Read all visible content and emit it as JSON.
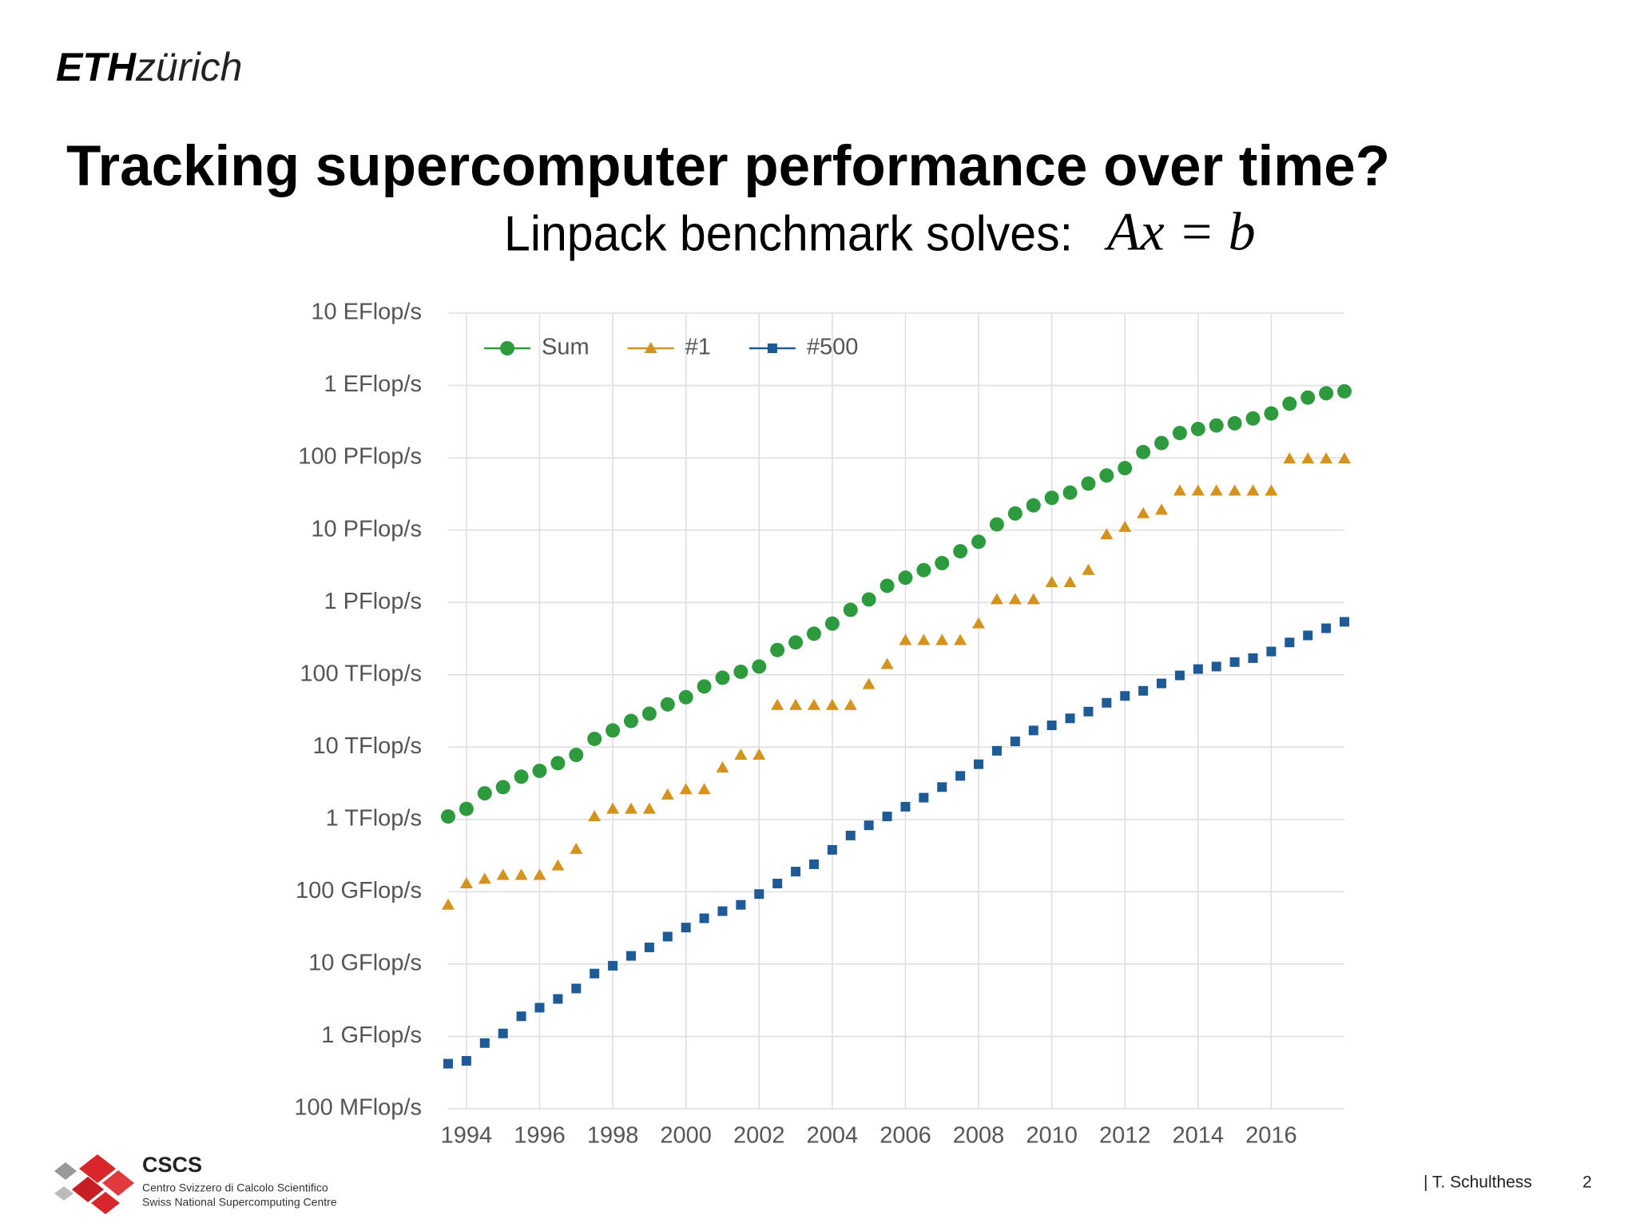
{
  "slide": {
    "logo": {
      "bold": "ETH",
      "light": "zürich"
    },
    "title": "Tracking supercomputer performance over time?",
    "subtitle": "Linpack benchmark solves:",
    "equation": "Ax = b",
    "footer": {
      "author": "| T. Schulthess",
      "page": "2"
    },
    "org": {
      "name": "CSCS",
      "line1": "Centro Svizzero di Calcolo Scientifico",
      "line2": "Swiss National Supercomputing Centre"
    }
  },
  "chart_data": {
    "type": "scatter",
    "log_y": true,
    "grid": true,
    "legend": "upper left",
    "x": [
      1993.5,
      1994,
      1994.5,
      1995,
      1995.5,
      1996,
      1996.5,
      1997,
      1997.5,
      1998,
      1998.5,
      1999,
      1999.5,
      2000,
      2000.5,
      2001,
      2001.5,
      2002,
      2002.5,
      2003,
      2003.5,
      2004,
      2004.5,
      2005,
      2005.5,
      2006,
      2006.5,
      2007,
      2007.5,
      2008,
      2008.5,
      2009,
      2009.5,
      2010,
      2010.5,
      2011,
      2011.5,
      2012,
      2012.5,
      2013,
      2013.5,
      2014,
      2014.5,
      2015,
      2015.5,
      2016,
      2016.5,
      2017,
      2017.5,
      2018
    ],
    "xlim": [
      1993.5,
      2018
    ],
    "xticks": [
      1994,
      1996,
      1998,
      2000,
      2002,
      2004,
      2006,
      2008,
      2010,
      2012,
      2014,
      2016
    ],
    "ylim": [
      100000000.0,
      1e+19
    ],
    "yticks": [
      {
        "value": 100000000.0,
        "label": "100 MFlop/s"
      },
      {
        "value": 1000000000.0,
        "label": "1 GFlop/s"
      },
      {
        "value": 10000000000.0,
        "label": "10 GFlop/s"
      },
      {
        "value": 100000000000.0,
        "label": "100 GFlop/s"
      },
      {
        "value": 1000000000000.0,
        "label": "1 TFlop/s"
      },
      {
        "value": 10000000000000.0,
        "label": "10 TFlop/s"
      },
      {
        "value": 100000000000000.0,
        "label": "100 TFlop/s"
      },
      {
        "value": 1000000000000000.0,
        "label": "1 PFlop/s"
      },
      {
        "value": 1e+16,
        "label": "10 PFlop/s"
      },
      {
        "value": 1e+17,
        "label": "100 PFlop/s"
      },
      {
        "value": 1e+18,
        "label": "1 EFlop/s"
      },
      {
        "value": 1e+19,
        "label": "10 EFlop/s"
      }
    ],
    "series": [
      {
        "name": "Sum",
        "color": "#2e9a3e",
        "marker": "circle",
        "values": [
          1100000000000.0,
          1400000000000.0,
          2300000000000.0,
          2800000000000.0,
          3900000000000.0,
          4700000000000.0,
          6000000000000.0,
          7800000000000.0,
          13000000000000.0,
          17000000000000.0,
          23000000000000.0,
          29000000000000.0,
          39000000000000.0,
          49000000000000.0,
          69000000000000.0,
          91000000000000.0,
          110000000000000.0,
          130000000000000.0,
          220000000000000.0,
          280000000000000.0,
          370000000000000.0,
          510000000000000.0,
          790000000000000.0,
          1100000000000000.0,
          1700000000000000.0,
          2200000000000000.0,
          2800000000000000.0,
          3500000000000000.0,
          5100000000000000.0,
          6900000000000000.0,
          1.2e+16,
          1.7e+16,
          2.2e+16,
          2.8e+16,
          3.3e+16,
          4.4e+16,
          5.7e+16,
          7.2e+16,
          1.2e+17,
          1.6e+17,
          2.2e+17,
          2.5e+17,
          2.8e+17,
          3e+17,
          3.5e+17,
          4.1e+17,
          5.6e+17,
          6.8e+17,
          7.8e+17,
          8.3e+17
        ]
      },
      {
        "name": "#1",
        "color": "#d4921e",
        "marker": "triangle",
        "values": [
          66000000000.0,
          130000000000.0,
          150000000000.0,
          170000000000.0,
          170000000000.0,
          170000000000.0,
          230000000000.0,
          390000000000.0,
          1100000000000.0,
          1400000000000.0,
          1400000000000.0,
          1400000000000.0,
          2200000000000.0,
          2600000000000.0,
          2600000000000.0,
          5200000000000.0,
          7800000000000.0,
          7800000000000.0,
          38000000000000.0,
          38000000000000.0,
          38000000000000.0,
          38000000000000.0,
          38000000000000.0,
          74000000000000.0,
          140000000000000.0,
          300000000000000.0,
          300000000000000.0,
          300000000000000.0,
          300000000000000.0,
          510000000000000.0,
          1100000000000000.0,
          1100000000000000.0,
          1100000000000000.0,
          1900000000000000.0,
          1900000000000000.0,
          2800000000000000.0,
          8700000000000000.0,
          1.1e+16,
          1.7e+16,
          1.9e+16,
          3.5e+16,
          3.5e+16,
          3.5e+16,
          3.5e+16,
          3.5e+16,
          3.5e+16,
          9.7e+16,
          9.7e+16,
          9.7e+16,
          9.7e+16
        ]
      },
      {
        "name": "#500",
        "color": "#1d5a96",
        "marker": "square",
        "values": [
          420000000.0,
          460000000.0,
          810000000.0,
          1100000000.0,
          1900000000.0,
          2500000000.0,
          3300000000.0,
          4600000000.0,
          7400000000.0,
          9500000000.0,
          13000000000.0,
          17000000000.0,
          24000000000.0,
          32000000000.0,
          43000000000.0,
          54000000000.0,
          66000000000.0,
          93000000000.0,
          130000000000.0,
          190000000000.0,
          240000000000.0,
          380000000000.0,
          600000000000.0,
          830000000000.0,
          1100000000000.0,
          1500000000000.0,
          2000000000000.0,
          2800000000000.0,
          4000000000000.0,
          5800000000000.0,
          8900000000000.0,
          12000000000000.0,
          17000000000000.0,
          20000000000000.0,
          25000000000000.0,
          31000000000000.0,
          41000000000000.0,
          51000000000000.0,
          60000000000000.0,
          76000000000000.0,
          98000000000000.0,
          120000000000000.0,
          130000000000000.0,
          150000000000000.0,
          170000000000000.0,
          210000000000000.0,
          280000000000000.0,
          350000000000000.0,
          440000000000000.0,
          540000000000000.0
        ]
      }
    ]
  }
}
